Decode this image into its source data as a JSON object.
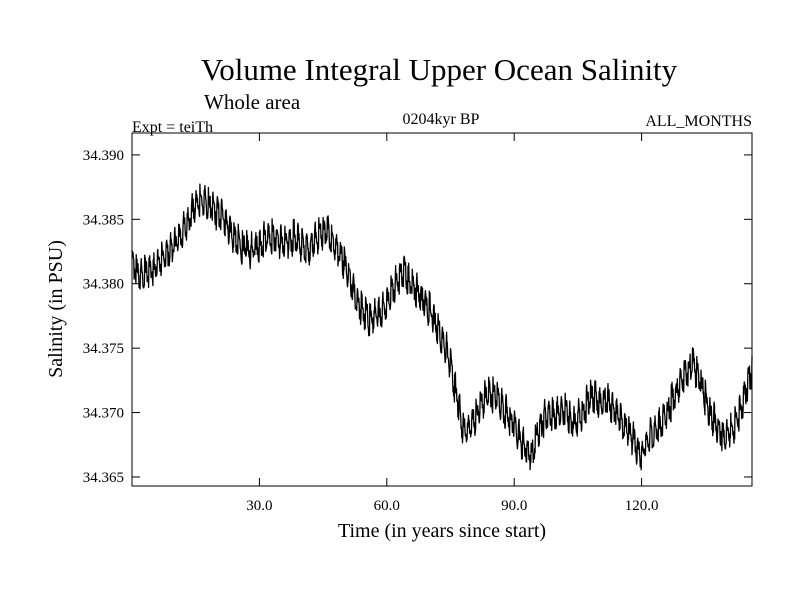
{
  "chart_data": {
    "type": "line",
    "title": "Volume Integral Upper Ocean Salinity",
    "subtitle": "Whole area",
    "experiment": "Expt = teiTh",
    "period": "0204kyr BP",
    "months": "ALL_MONTHS",
    "xlabel": "Time (in years since start)",
    "ylabel": "Salinity (in PSU)",
    "xlim": [
      0,
      146
    ],
    "ylim": [
      34.3643,
      34.3917
    ],
    "xticks": [
      30,
      60,
      90,
      120
    ],
    "xtick_labels": [
      "30.0",
      "60.0",
      "90.0",
      "120.0"
    ],
    "yticks": [
      34.365,
      34.37,
      34.375,
      34.38,
      34.385,
      34.39
    ],
    "ytick_labels": [
      "34.365",
      "34.370",
      "34.375",
      "34.380",
      "34.385",
      "34.390"
    ],
    "grid": false,
    "series": [
      {
        "name": "Salinity",
        "color": "#000000",
        "x": [
          0,
          2,
          4,
          6,
          8,
          10,
          12,
          14,
          16,
          18,
          20,
          22,
          24,
          26,
          28,
          30,
          32,
          34,
          36,
          38,
          40,
          42,
          44,
          46,
          48,
          50,
          52,
          54,
          56,
          58,
          60,
          62,
          64,
          66,
          68,
          70,
          72,
          74,
          76,
          78,
          80,
          82,
          84,
          86,
          88,
          90,
          92,
          94,
          96,
          98,
          100,
          102,
          104,
          106,
          108,
          110,
          112,
          114,
          116,
          118,
          120,
          122,
          124,
          126,
          128,
          130,
          132,
          134,
          136,
          138,
          140,
          142,
          144,
          146
        ],
        "values": [
          34.3815,
          34.3805,
          34.381,
          34.3815,
          34.3822,
          34.383,
          34.384,
          34.3855,
          34.3865,
          34.386,
          34.3855,
          34.385,
          34.3835,
          34.3828,
          34.3825,
          34.383,
          34.3838,
          34.3835,
          34.383,
          34.3836,
          34.383,
          34.3828,
          34.3838,
          34.384,
          34.3828,
          34.3815,
          34.3795,
          34.378,
          34.3772,
          34.3775,
          34.3785,
          34.38,
          34.381,
          34.38,
          34.379,
          34.378,
          34.3765,
          34.375,
          34.372,
          34.3685,
          34.369,
          34.3705,
          34.3715,
          34.3712,
          34.37,
          34.369,
          34.3675,
          34.3665,
          34.369,
          34.37,
          34.3698,
          34.3702,
          34.3692,
          34.37,
          34.3712,
          34.3708,
          34.371,
          34.37,
          34.3688,
          34.368,
          34.3665,
          34.3682,
          34.3688,
          34.37,
          34.3715,
          34.373,
          34.3738,
          34.3722,
          34.37,
          34.3688,
          34.368,
          34.369,
          34.371,
          34.3735
        ]
      }
    ]
  }
}
